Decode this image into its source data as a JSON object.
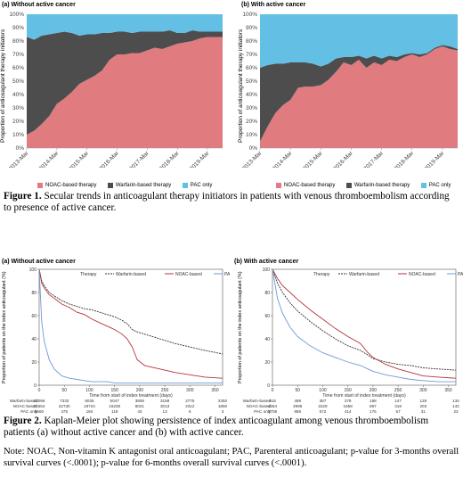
{
  "figure1": {
    "colors": {
      "noac": "#e07b7f",
      "warfarin": "#4d4d4d",
      "pac": "#63bfe3"
    },
    "ylabel": "Proportion of anticoagulant therapy initiators",
    "yticks": [
      "0%",
      "10%",
      "20%",
      "30%",
      "40%",
      "50%",
      "60%",
      "70%",
      "80%",
      "90%",
      "100%"
    ],
    "xticks": [
      "2013-Mar",
      "2014-Mar",
      "2015-Mar",
      "2016-Mar",
      "2017-Mar",
      "2018-Mar",
      "2019-Mar"
    ],
    "legend": [
      "NOAC-based therapy",
      "Warfarin-based therapy",
      "PAC only"
    ],
    "caption_label": "Figure 1.",
    "caption_text": " Secular trends in anticoagulant therapy initiators in patients with venous thromboembolism according to presence of active cancer."
  },
  "figure2": {
    "ylabel": "Proportion of patients on the index anticoagulant (%)",
    "xlabel": "Time from start of index treatment (days)",
    "legend_title": "Therapy",
    "legend": [
      "Warfarin-based",
      "NOAC-based",
      "PAC only"
    ],
    "yticks": [
      "0",
      "20",
      "40",
      "60",
      "80",
      "100"
    ],
    "xticks": [
      "0",
      "50",
      "100",
      "150",
      "200",
      "250",
      "300",
      "350"
    ],
    "caption_label": "Figure 2.",
    "caption_text": " Kaplan-Meier plot showing persistence of index anticoagulant among venous thromboembolism patients (a) without active cancer and (b) with active cancer.",
    "note": "Note: NOAC, Non-vitamin K antagonist oral anticoagulant; PAC, Parenteral anticoagulant; p-value for 3-months overall survival curves (<.0001); p-value for 6-months overall survival curves (<.0001)."
  },
  "chart_data": [
    {
      "type": "area",
      "title": "(a) Without active cancer",
      "ylabel": "Proportion of anticoagulant therapy initiators",
      "ylim": [
        0,
        100
      ],
      "x": [
        "2013-Mar",
        "",
        "",
        "",
        "2014-Mar",
        "",
        "",
        "",
        "2015-Mar",
        "",
        "",
        "",
        "2016-Mar",
        "",
        "",
        "",
        "2017-Mar",
        "",
        "",
        "",
        "2018-Mar",
        "",
        "",
        "",
        "2019-Mar",
        "",
        ""
      ],
      "series": [
        {
          "name": "NOAC-based therapy",
          "values": [
            10,
            13,
            18,
            24,
            33,
            37,
            42,
            48,
            51,
            54,
            58,
            66,
            70,
            70,
            71,
            71,
            73,
            75,
            74,
            76,
            78,
            79,
            80,
            82,
            83,
            83,
            83
          ]
        },
        {
          "name": "Warfarin-based therapy",
          "values": [
            73,
            68,
            66,
            61,
            53,
            50,
            44,
            36,
            34,
            31,
            28,
            20,
            17,
            17,
            15,
            16,
            14,
            12,
            13,
            12,
            8,
            7,
            8,
            5,
            4,
            4,
            4
          ]
        },
        {
          "name": "PAC only",
          "values": [
            17,
            19,
            16,
            15,
            14,
            13,
            14,
            16,
            15,
            15,
            14,
            14,
            13,
            13,
            14,
            13,
            13,
            13,
            13,
            12,
            14,
            14,
            12,
            13,
            13,
            13,
            13
          ]
        }
      ],
      "legend": "bottom"
    },
    {
      "type": "area",
      "title": "(b) With active cancer",
      "ylabel": "Proportion of anticoagulant therapy initiators",
      "ylim": [
        0,
        100
      ],
      "x": [
        "2013-Mar",
        "",
        "",
        "",
        "2014-Mar",
        "",
        "",
        "",
        "2015-Mar",
        "",
        "",
        "",
        "2016-Mar",
        "",
        "",
        "",
        "2017-Mar",
        "",
        "",
        "",
        "2018-Mar",
        "",
        "",
        "",
        "2019-Mar",
        "",
        ""
      ],
      "series": [
        {
          "name": "NOAC-based therapy",
          "values": [
            5,
            16,
            26,
            32,
            36,
            45,
            46,
            46,
            47,
            51,
            57,
            64,
            62,
            66,
            60,
            64,
            62,
            66,
            65,
            68,
            70,
            68,
            70,
            74,
            76,
            74,
            73
          ]
        },
        {
          "name": "Warfarin-based therapy",
          "values": [
            55,
            46,
            37,
            31,
            28,
            19,
            18,
            17,
            14,
            12,
            10,
            4,
            6,
            3,
            7,
            5,
            5,
            3,
            3,
            2,
            1,
            2,
            1,
            1,
            1,
            2,
            1
          ]
        },
        {
          "name": "PAC only",
          "values": [
            40,
            38,
            37,
            37,
            36,
            36,
            36,
            37,
            39,
            37,
            33,
            32,
            32,
            31,
            33,
            31,
            33,
            31,
            32,
            30,
            29,
            30,
            29,
            25,
            23,
            24,
            26
          ]
        }
      ],
      "legend": "bottom"
    },
    {
      "type": "line",
      "title": "(a) Without active cancer",
      "xlabel": "Time from start of index treatment (days)",
      "ylabel": "Proportion of patients on the index anticoagulant (%)",
      "xlim": [
        0,
        365
      ],
      "ylim": [
        0,
        100
      ],
      "x": [
        0,
        5,
        10,
        20,
        30,
        45,
        60,
        75,
        90,
        105,
        120,
        135,
        150,
        165,
        175,
        185,
        195,
        210,
        240,
        270,
        300,
        330,
        365
      ],
      "series": [
        {
          "name": "Warfarin-based",
          "values": [
            100,
            90,
            86,
            80,
            77,
            73,
            70,
            68,
            66,
            65,
            63,
            61,
            59,
            56,
            53,
            48,
            46,
            44,
            40,
            36,
            33,
            30,
            27
          ]
        },
        {
          "name": "NOAC-based",
          "values": [
            100,
            88,
            84,
            78,
            75,
            70,
            67,
            63,
            61,
            57,
            54,
            51,
            48,
            44,
            40,
            33,
            22,
            17,
            14,
            11,
            9,
            7,
            6
          ]
        },
        {
          "name": "PAC only",
          "values": [
            100,
            55,
            38,
            22,
            14,
            8,
            6,
            5,
            4,
            3,
            3,
            3,
            2,
            2,
            2,
            2,
            2,
            2,
            2,
            2,
            2,
            2,
            2
          ]
        }
      ],
      "at_risk": {
        "times": [
          "0",
          "50",
          "100",
          "150",
          "200",
          "250",
          "300",
          "365"
        ],
        "rows": [
          {
            "name": "Warfarin-based",
            "values": [
              "23096",
              "7333",
              "6035",
              "5047",
              "3806",
              "3158",
              "2775",
              "2392"
            ]
          },
          {
            "name": "NOAC-based",
            "values": [
              "31564",
              "22730",
              "19724",
              "16238",
              "6021",
              "3013",
              "2312",
              "1850"
            ]
          },
          {
            "name": "PAC only",
            "values": [
              "8560",
              "475",
              "184",
              "119",
              "43",
              "13",
              "6",
              "3"
            ]
          }
        ]
      }
    },
    {
      "type": "line",
      "title": "(b) With active cancer",
      "xlabel": "Time from start of index treatment (days)",
      "ylabel": "Proportion of patients on the index anticoagulant (%)",
      "xlim": [
        0,
        365
      ],
      "ylim": [
        0,
        100
      ],
      "x": [
        0,
        10,
        20,
        35,
        50,
        75,
        100,
        125,
        150,
        175,
        190,
        200,
        225,
        250,
        275,
        300,
        330,
        365
      ],
      "series": [
        {
          "name": "Warfarin-based",
          "values": [
            100,
            88,
            80,
            71,
            64,
            55,
            47,
            40,
            34,
            30,
            26,
            23,
            20,
            18,
            17,
            15,
            14,
            13
          ]
        },
        {
          "name": "NOAC-based",
          "values": [
            100,
            92,
            86,
            80,
            74,
            65,
            57,
            49,
            42,
            36,
            28,
            24,
            18,
            14,
            11,
            8,
            7,
            6
          ]
        },
        {
          "name": "PAC only",
          "values": [
            100,
            75,
            62,
            50,
            42,
            34,
            28,
            24,
            20,
            17,
            14,
            12,
            9,
            7,
            5,
            4,
            3,
            3
          ]
        }
      ],
      "at_risk": {
        "times": [
          "0",
          "50",
          "100",
          "150",
          "200",
          "250",
          "300",
          "365"
        ],
        "rows": [
          {
            "name": "Warfarin-based",
            "values": [
              "918",
              "498",
              "387",
              "279",
              "188",
              "147",
              "128",
              "134"
            ]
          },
          {
            "name": "NOAC-based",
            "values": [
              "4354",
              "2996",
              "2229",
              "1558",
              "697",
              "318",
              "203",
              "142"
            ]
          },
          {
            "name": "PAC only",
            "values": [
              "3708",
              "958",
              "572",
              "414",
              "175",
              "57",
              "31",
              "23"
            ]
          }
        ]
      }
    }
  ]
}
